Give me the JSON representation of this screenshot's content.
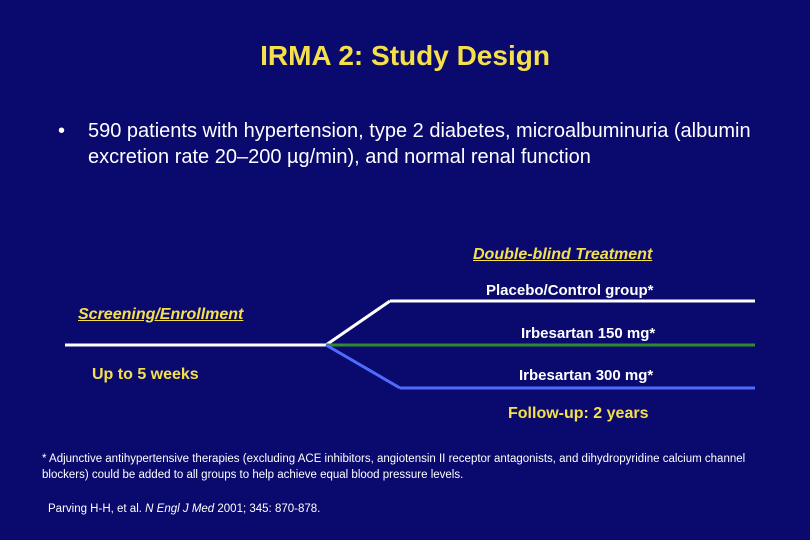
{
  "title": "IRMA 2: Study Design",
  "bullet": {
    "marker": "•",
    "text": "590 patients with hypertension, type 2 diabetes, microalbuminuria (albumin excretion rate 20–200 µg/min), and normal renal function"
  },
  "diagram": {
    "double_blind_label": "Double-blind Treatment",
    "screening_label": "Screening/Enrollment",
    "duration_label": "Up to 5 weeks",
    "arms": [
      {
        "label": "Placebo/Control group*",
        "color": "#ffffff"
      },
      {
        "label": "Irbesartan 150 mg*",
        "color": "#2e8b2e"
      },
      {
        "label": "Irbesartan 300 mg*",
        "color": "#4f6bff"
      }
    ],
    "followup_label": "Follow-up:  2 years"
  },
  "footnote": "*  Adjunctive antihypertensive therapies (excluding ACE inhibitors, angiotensin II receptor antagonists, and dihydropyridine calcium channel blockers) could be added to all groups to help achieve equal blood pressure levels.",
  "citation": {
    "authors": "Parving H-H, et al.",
    "journal": "N Engl J Med",
    "details": "2001; 345: 870-878."
  },
  "colors": {
    "background": "#0a0a6e",
    "title": "#f5e04a",
    "text": "#ffffff"
  }
}
